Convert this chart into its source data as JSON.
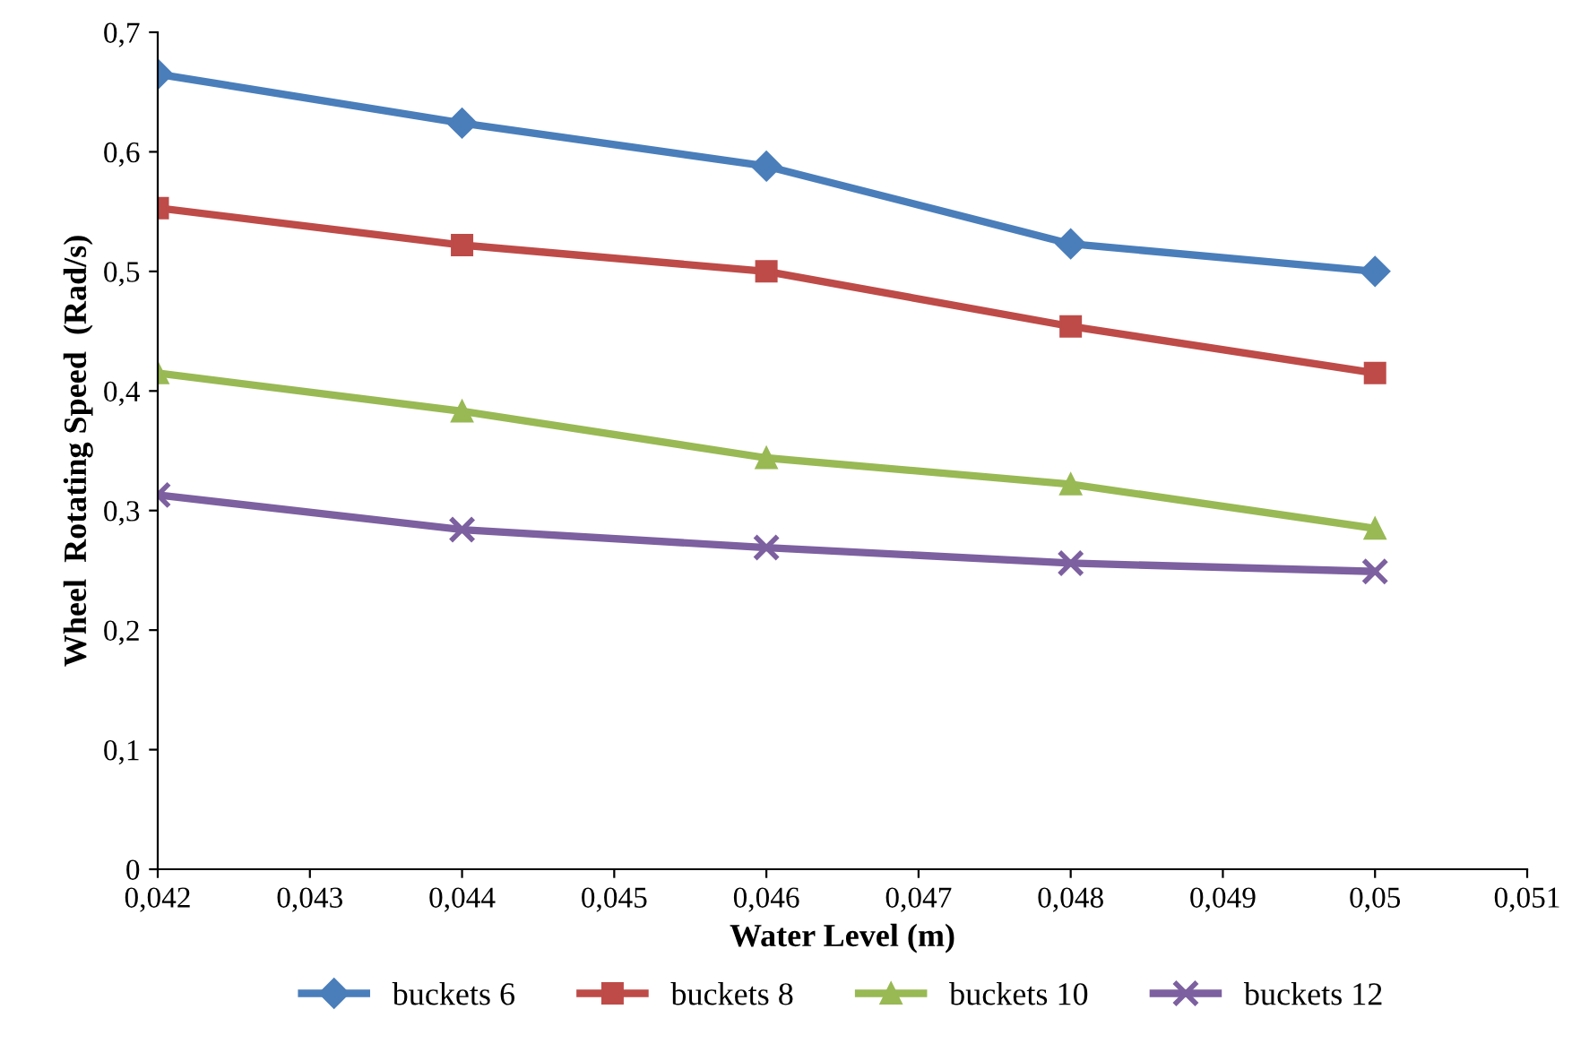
{
  "chart_data": {
    "type": "line",
    "xlabel": "Water Level (m)",
    "ylabel": "Wheel  Rotating Speed  (Rad/s)",
    "x": [
      0.042,
      0.044,
      0.046,
      0.048,
      0.05
    ],
    "series": [
      {
        "name": "buckets 6",
        "color": "#4a7ebb",
        "marker": "diamond",
        "values": [
          0.665,
          0.624,
          0.588,
          0.523,
          0.5
        ]
      },
      {
        "name": "buckets 8",
        "color": "#be4b48",
        "marker": "square",
        "values": [
          0.553,
          0.522,
          0.5,
          0.454,
          0.415
        ]
      },
      {
        "name": "buckets 10",
        "color": "#98b954",
        "marker": "triangle",
        "values": [
          0.415,
          0.383,
          0.344,
          0.322,
          0.285
        ]
      },
      {
        "name": "buckets 12",
        "color": "#7d60a0",
        "marker": "cross",
        "values": [
          0.313,
          0.284,
          0.269,
          0.256,
          0.249
        ]
      }
    ],
    "xlim": [
      0.042,
      0.051
    ],
    "xticks": [
      {
        "value": 0.042,
        "label": "0,042"
      },
      {
        "value": 0.043,
        "label": "0,043"
      },
      {
        "value": 0.044,
        "label": "0,044"
      },
      {
        "value": 0.045,
        "label": "0,045"
      },
      {
        "value": 0.046,
        "label": "0,046"
      },
      {
        "value": 0.047,
        "label": "0,047"
      },
      {
        "value": 0.048,
        "label": "0,048"
      },
      {
        "value": 0.049,
        "label": "0,049"
      },
      {
        "value": 0.05,
        "label": "0,05"
      },
      {
        "value": 0.051,
        "label": "0,051"
      }
    ],
    "ylim": [
      0,
      0.7
    ],
    "yticks": [
      0,
      {
        "value": 0.1,
        "label": "0,1"
      },
      {
        "value": 0.2,
        "label": "0,2"
      },
      {
        "value": 0.3,
        "label": "0,3"
      },
      {
        "value": 0.4,
        "label": "0,4"
      },
      {
        "value": 0.5,
        "label": "0,5"
      },
      {
        "value": 0.6,
        "label": "0,6"
      },
      {
        "value": 0.7,
        "label": "0,7"
      }
    ],
    "grid": false,
    "legend": "bottom",
    "line_style": "solid"
  }
}
